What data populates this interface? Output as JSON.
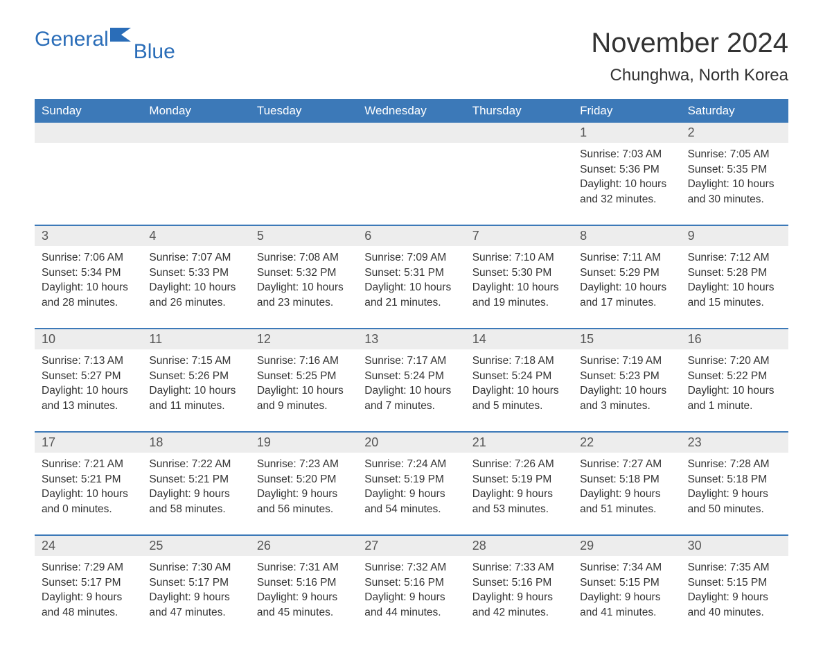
{
  "logo": {
    "text1": "General",
    "text2": "Blue",
    "flag_color": "#2a6db8"
  },
  "title": "November 2024",
  "subtitle": "Chunghwa, North Korea",
  "colors": {
    "header_bg": "#3c79b8",
    "header_text": "#ffffff",
    "daynum_bg": "#ededed",
    "rule": "#3c79b8",
    "text": "#333333",
    "logo": "#2a6db8"
  },
  "day_labels": [
    "Sunday",
    "Monday",
    "Tuesday",
    "Wednesday",
    "Thursday",
    "Friday",
    "Saturday"
  ],
  "weeks": [
    [
      null,
      null,
      null,
      null,
      null,
      {
        "n": "1",
        "sunrise": "Sunrise: 7:03 AM",
        "sunset": "Sunset: 5:36 PM",
        "day1": "Daylight: 10 hours",
        "day2": "and 32 minutes."
      },
      {
        "n": "2",
        "sunrise": "Sunrise: 7:05 AM",
        "sunset": "Sunset: 5:35 PM",
        "day1": "Daylight: 10 hours",
        "day2": "and 30 minutes."
      }
    ],
    [
      {
        "n": "3",
        "sunrise": "Sunrise: 7:06 AM",
        "sunset": "Sunset: 5:34 PM",
        "day1": "Daylight: 10 hours",
        "day2": "and 28 minutes."
      },
      {
        "n": "4",
        "sunrise": "Sunrise: 7:07 AM",
        "sunset": "Sunset: 5:33 PM",
        "day1": "Daylight: 10 hours",
        "day2": "and 26 minutes."
      },
      {
        "n": "5",
        "sunrise": "Sunrise: 7:08 AM",
        "sunset": "Sunset: 5:32 PM",
        "day1": "Daylight: 10 hours",
        "day2": "and 23 minutes."
      },
      {
        "n": "6",
        "sunrise": "Sunrise: 7:09 AM",
        "sunset": "Sunset: 5:31 PM",
        "day1": "Daylight: 10 hours",
        "day2": "and 21 minutes."
      },
      {
        "n": "7",
        "sunrise": "Sunrise: 7:10 AM",
        "sunset": "Sunset: 5:30 PM",
        "day1": "Daylight: 10 hours",
        "day2": "and 19 minutes."
      },
      {
        "n": "8",
        "sunrise": "Sunrise: 7:11 AM",
        "sunset": "Sunset: 5:29 PM",
        "day1": "Daylight: 10 hours",
        "day2": "and 17 minutes."
      },
      {
        "n": "9",
        "sunrise": "Sunrise: 7:12 AM",
        "sunset": "Sunset: 5:28 PM",
        "day1": "Daylight: 10 hours",
        "day2": "and 15 minutes."
      }
    ],
    [
      {
        "n": "10",
        "sunrise": "Sunrise: 7:13 AM",
        "sunset": "Sunset: 5:27 PM",
        "day1": "Daylight: 10 hours",
        "day2": "and 13 minutes."
      },
      {
        "n": "11",
        "sunrise": "Sunrise: 7:15 AM",
        "sunset": "Sunset: 5:26 PM",
        "day1": "Daylight: 10 hours",
        "day2": "and 11 minutes."
      },
      {
        "n": "12",
        "sunrise": "Sunrise: 7:16 AM",
        "sunset": "Sunset: 5:25 PM",
        "day1": "Daylight: 10 hours",
        "day2": "and 9 minutes."
      },
      {
        "n": "13",
        "sunrise": "Sunrise: 7:17 AM",
        "sunset": "Sunset: 5:24 PM",
        "day1": "Daylight: 10 hours",
        "day2": "and 7 minutes."
      },
      {
        "n": "14",
        "sunrise": "Sunrise: 7:18 AM",
        "sunset": "Sunset: 5:24 PM",
        "day1": "Daylight: 10 hours",
        "day2": "and 5 minutes."
      },
      {
        "n": "15",
        "sunrise": "Sunrise: 7:19 AM",
        "sunset": "Sunset: 5:23 PM",
        "day1": "Daylight: 10 hours",
        "day2": "and 3 minutes."
      },
      {
        "n": "16",
        "sunrise": "Sunrise: 7:20 AM",
        "sunset": "Sunset: 5:22 PM",
        "day1": "Daylight: 10 hours",
        "day2": "and 1 minute."
      }
    ],
    [
      {
        "n": "17",
        "sunrise": "Sunrise: 7:21 AM",
        "sunset": "Sunset: 5:21 PM",
        "day1": "Daylight: 10 hours",
        "day2": "and 0 minutes."
      },
      {
        "n": "18",
        "sunrise": "Sunrise: 7:22 AM",
        "sunset": "Sunset: 5:21 PM",
        "day1": "Daylight: 9 hours",
        "day2": "and 58 minutes."
      },
      {
        "n": "19",
        "sunrise": "Sunrise: 7:23 AM",
        "sunset": "Sunset: 5:20 PM",
        "day1": "Daylight: 9 hours",
        "day2": "and 56 minutes."
      },
      {
        "n": "20",
        "sunrise": "Sunrise: 7:24 AM",
        "sunset": "Sunset: 5:19 PM",
        "day1": "Daylight: 9 hours",
        "day2": "and 54 minutes."
      },
      {
        "n": "21",
        "sunrise": "Sunrise: 7:26 AM",
        "sunset": "Sunset: 5:19 PM",
        "day1": "Daylight: 9 hours",
        "day2": "and 53 minutes."
      },
      {
        "n": "22",
        "sunrise": "Sunrise: 7:27 AM",
        "sunset": "Sunset: 5:18 PM",
        "day1": "Daylight: 9 hours",
        "day2": "and 51 minutes."
      },
      {
        "n": "23",
        "sunrise": "Sunrise: 7:28 AM",
        "sunset": "Sunset: 5:18 PM",
        "day1": "Daylight: 9 hours",
        "day2": "and 50 minutes."
      }
    ],
    [
      {
        "n": "24",
        "sunrise": "Sunrise: 7:29 AM",
        "sunset": "Sunset: 5:17 PM",
        "day1": "Daylight: 9 hours",
        "day2": "and 48 minutes."
      },
      {
        "n": "25",
        "sunrise": "Sunrise: 7:30 AM",
        "sunset": "Sunset: 5:17 PM",
        "day1": "Daylight: 9 hours",
        "day2": "and 47 minutes."
      },
      {
        "n": "26",
        "sunrise": "Sunrise: 7:31 AM",
        "sunset": "Sunset: 5:16 PM",
        "day1": "Daylight: 9 hours",
        "day2": "and 45 minutes."
      },
      {
        "n": "27",
        "sunrise": "Sunrise: 7:32 AM",
        "sunset": "Sunset: 5:16 PM",
        "day1": "Daylight: 9 hours",
        "day2": "and 44 minutes."
      },
      {
        "n": "28",
        "sunrise": "Sunrise: 7:33 AM",
        "sunset": "Sunset: 5:16 PM",
        "day1": "Daylight: 9 hours",
        "day2": "and 42 minutes."
      },
      {
        "n": "29",
        "sunrise": "Sunrise: 7:34 AM",
        "sunset": "Sunset: 5:15 PM",
        "day1": "Daylight: 9 hours",
        "day2": "and 41 minutes."
      },
      {
        "n": "30",
        "sunrise": "Sunrise: 7:35 AM",
        "sunset": "Sunset: 5:15 PM",
        "day1": "Daylight: 9 hours",
        "day2": "and 40 minutes."
      }
    ]
  ]
}
